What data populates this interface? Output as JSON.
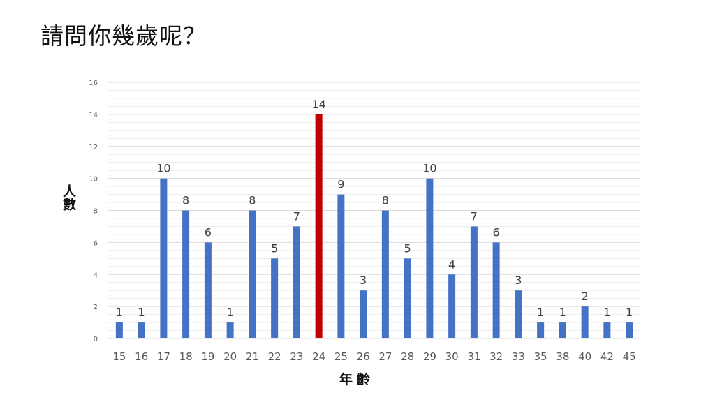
{
  "slide": {
    "title": "請問你幾歲呢？"
  },
  "chart_data": {
    "type": "bar",
    "title": "",
    "xlabel": "年齡",
    "ylabel": "人數",
    "categories": [
      "15",
      "16",
      "17",
      "18",
      "19",
      "20",
      "21",
      "22",
      "23",
      "24",
      "25",
      "26",
      "27",
      "28",
      "29",
      "30",
      "31",
      "32",
      "33",
      "35",
      "38",
      "40",
      "42",
      "45"
    ],
    "series": [
      {
        "values": [
          1,
          1,
          10,
          8,
          6,
          1,
          8,
          5,
          7,
          14,
          9,
          3,
          8,
          5,
          10,
          4,
          7,
          6,
          3,
          1,
          1,
          2,
          1,
          1
        ]
      }
    ],
    "ylim": [
      0,
      16
    ],
    "yticks": [
      0,
      2,
      4,
      6,
      8,
      10,
      12,
      14,
      16
    ],
    "grid": true,
    "legend": "none",
    "data_labels": true,
    "colors": {
      "bar": "#4472c4",
      "highlight": "#c00000",
      "grid": "#d9d9d9",
      "tick_text": "#595959",
      "label_text": "#404040"
    },
    "highlight_category": "24"
  }
}
